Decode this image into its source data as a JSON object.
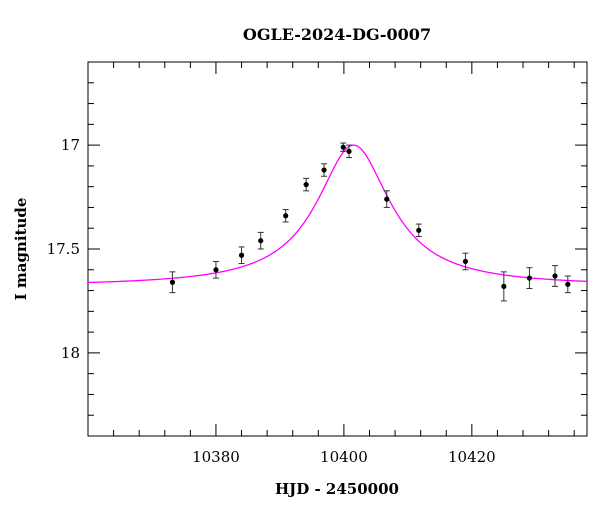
{
  "chart_data": {
    "type": "scatter",
    "title": "OGLE-2024-DG-0007",
    "xlabel": "HJD - 2450000",
    "ylabel": "I magnitude",
    "xlim": [
      10360,
      10438
    ],
    "ylim": [
      18.4,
      16.6
    ],
    "y_inverted": true,
    "x_ticks": [
      10380,
      10400,
      10420
    ],
    "y_ticks": [
      17,
      17.5,
      18
    ],
    "x_tick_labels": [
      "10380",
      "10400",
      "10420"
    ],
    "y_tick_labels": [
      "17",
      "17.5",
      "18"
    ],
    "grid": false,
    "legend": "none",
    "series": [
      {
        "type": "scatter",
        "color": "#000000",
        "points": [
          {
            "x": 10373.2,
            "y": 17.66,
            "err": 0.05
          },
          {
            "x": 10380.0,
            "y": 17.6,
            "err": 0.04
          },
          {
            "x": 10384.0,
            "y": 17.53,
            "err": 0.04
          },
          {
            "x": 10387.0,
            "y": 17.46,
            "err": 0.04
          },
          {
            "x": 10390.9,
            "y": 17.34,
            "err": 0.03
          },
          {
            "x": 10394.1,
            "y": 17.19,
            "err": 0.03
          },
          {
            "x": 10396.9,
            "y": 17.12,
            "err": 0.03
          },
          {
            "x": 10399.9,
            "y": 17.01,
            "err": 0.02
          },
          {
            "x": 10400.8,
            "y": 17.03,
            "err": 0.03
          },
          {
            "x": 10406.7,
            "y": 17.26,
            "err": 0.04
          },
          {
            "x": 10411.7,
            "y": 17.41,
            "err": 0.03
          },
          {
            "x": 10419.0,
            "y": 17.56,
            "err": 0.04
          },
          {
            "x": 10425.0,
            "y": 17.68,
            "err": 0.07
          },
          {
            "x": 10429.0,
            "y": 17.64,
            "err": 0.05
          },
          {
            "x": 10433.0,
            "y": 17.63,
            "err": 0.05
          },
          {
            "x": 10435.0,
            "y": 17.67,
            "err": 0.04
          }
        ]
      },
      {
        "type": "line",
        "color": "#ff00ff",
        "model": {
          "baseline": 17.68,
          "peak_x": 10401.5,
          "peak_y": 17.0,
          "width": 7.0
        }
      }
    ]
  }
}
